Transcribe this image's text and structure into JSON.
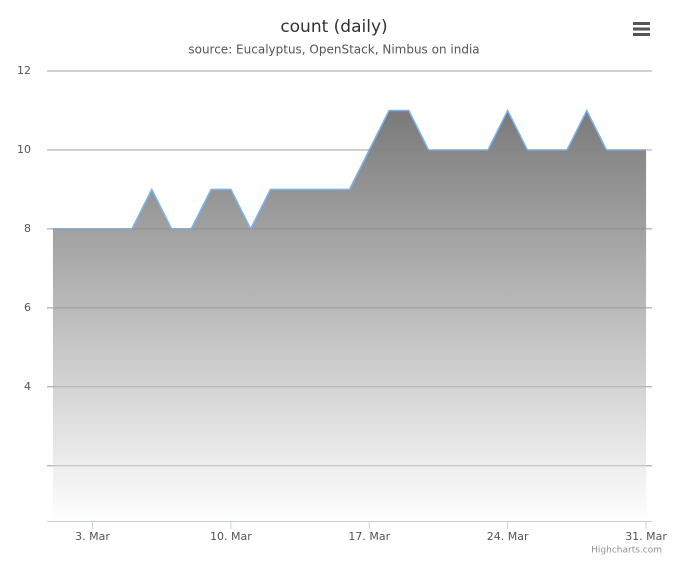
{
  "chart_data": {
    "type": "area",
    "title": "count (daily)",
    "subtitle": "source: Eucalyptus, OpenStack, Nimbus on india",
    "credits": "Highcharts.com",
    "x": [
      1,
      2,
      3,
      4,
      5,
      6,
      7,
      8,
      9,
      10,
      11,
      12,
      13,
      14,
      15,
      16,
      17,
      18,
      19,
      20,
      21,
      22,
      23,
      24,
      25,
      26,
      27,
      28,
      29,
      30,
      31
    ],
    "values": [
      8,
      8,
      8,
      8,
      8,
      9,
      8,
      8,
      9,
      9,
      8,
      9,
      9,
      9,
      9,
      9,
      10,
      11,
      11,
      10,
      10,
      10,
      10,
      11,
      10,
      10,
      10,
      11,
      10,
      10,
      10
    ],
    "color": "#7cb5ec",
    "xlim": [
      0.7,
      31.3
    ],
    "xticks": [
      {
        "value": 3,
        "label": "3. Mar"
      },
      {
        "value": 10,
        "label": "10. Mar"
      },
      {
        "value": 17,
        "label": "17. Mar"
      },
      {
        "value": 24,
        "label": "24. Mar"
      },
      {
        "value": 31,
        "label": "31. Mar"
      }
    ],
    "ylim": [
      0.6,
      12
    ],
    "yticks": [
      {
        "value": 2,
        "label": null
      },
      4,
      6,
      8,
      10,
      12
    ],
    "grid": true
  }
}
